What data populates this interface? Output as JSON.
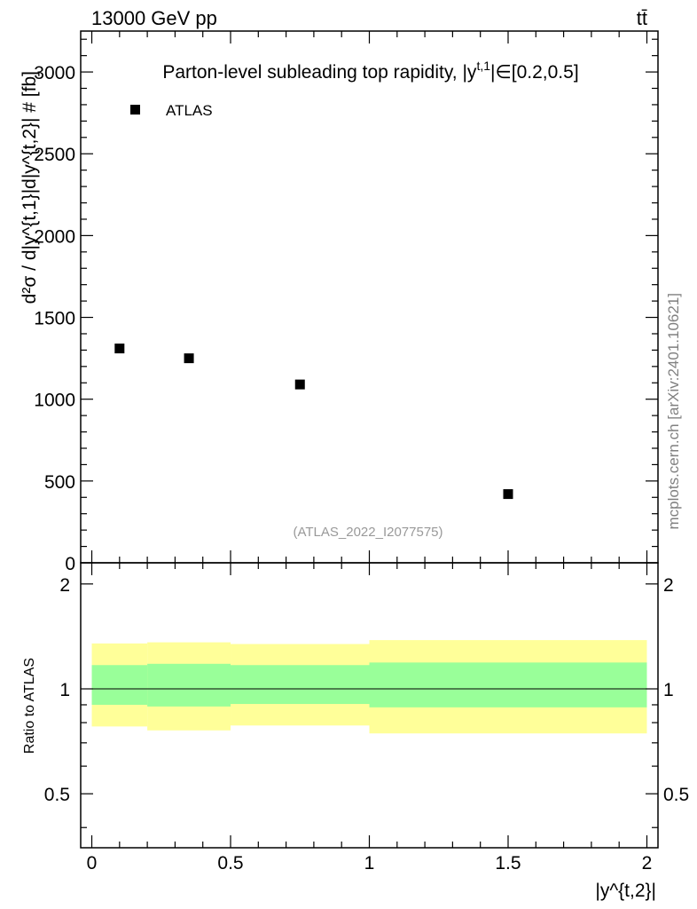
{
  "header": {
    "energy_label": "13000 GeV pp",
    "process_label": "tt̄"
  },
  "side_label": "mcplots.cern.ch [arXiv:2401.10621]",
  "chart_data": [
    {
      "type": "scatter",
      "panel": "main",
      "title": "Parton-level subleading top rapidity, |y^{t,1}|∈[0.2,0.5]",
      "title_parts": {
        "prefix": "Parton-level subleading top rapidity, |y",
        "sup": "t,1",
        "suffix": "|∈[0.2,0.5]"
      },
      "ylabel": "d²σ / d|y^{t,1}|d|y^{t,2}| # [fb]",
      "xlim": [
        -0.04,
        2.04
      ],
      "ylim": [
        0,
        3250
      ],
      "yticks": [
        0,
        500,
        1000,
        1500,
        2000,
        2500,
        3000
      ],
      "ytick_labels": [
        "0",
        "500",
        "1000",
        "1500",
        "2000",
        "2500",
        "3000"
      ],
      "legend": {
        "placement": "top-left",
        "entries": [
          "ATLAS"
        ]
      },
      "watermark": "(ATLAS_2022_I2077575)",
      "series": [
        {
          "name": "ATLAS",
          "color": "#000000",
          "marker": "square",
          "x": [
            0.1,
            0.35,
            0.75,
            1.5
          ],
          "y": [
            1310,
            1250,
            1090,
            420
          ]
        }
      ]
    },
    {
      "type": "area",
      "panel": "ratio",
      "ylabel": "Ratio to ATLAS",
      "xlabel": "|y^{t,2}|",
      "xlim": [
        -0.04,
        2.04
      ],
      "ylim": [
        0.35,
        2.3
      ],
      "yticks": [
        0.5,
        1,
        2
      ],
      "ytick_labels": [
        "0.5",
        "1",
        "2"
      ],
      "xticks": [
        0,
        0.5,
        1,
        1.5,
        2
      ],
      "xtick_labels": [
        "0",
        "0.5",
        "1",
        "1.5",
        "2"
      ],
      "reference_line": 1,
      "bands": [
        {
          "kind": "total",
          "color": "#ffff99",
          "bins": [
            [
              0,
              0.2
            ],
            [
              0.2,
              0.5
            ],
            [
              0.5,
              1.0
            ],
            [
              1.0,
              2.0
            ]
          ],
          "low": [
            0.78,
            0.76,
            0.785,
            0.745
          ],
          "high": [
            1.35,
            1.36,
            1.345,
            1.38
          ]
        },
        {
          "kind": "stat",
          "color": "#99ff99",
          "bins": [
            [
              0,
              0.2
            ],
            [
              0.2,
              0.5
            ],
            [
              0.5,
              1.0
            ],
            [
              1.0,
              2.0
            ]
          ],
          "low": [
            0.9,
            0.89,
            0.905,
            0.885
          ],
          "high": [
            1.17,
            1.18,
            1.17,
            1.19
          ]
        }
      ]
    }
  ]
}
